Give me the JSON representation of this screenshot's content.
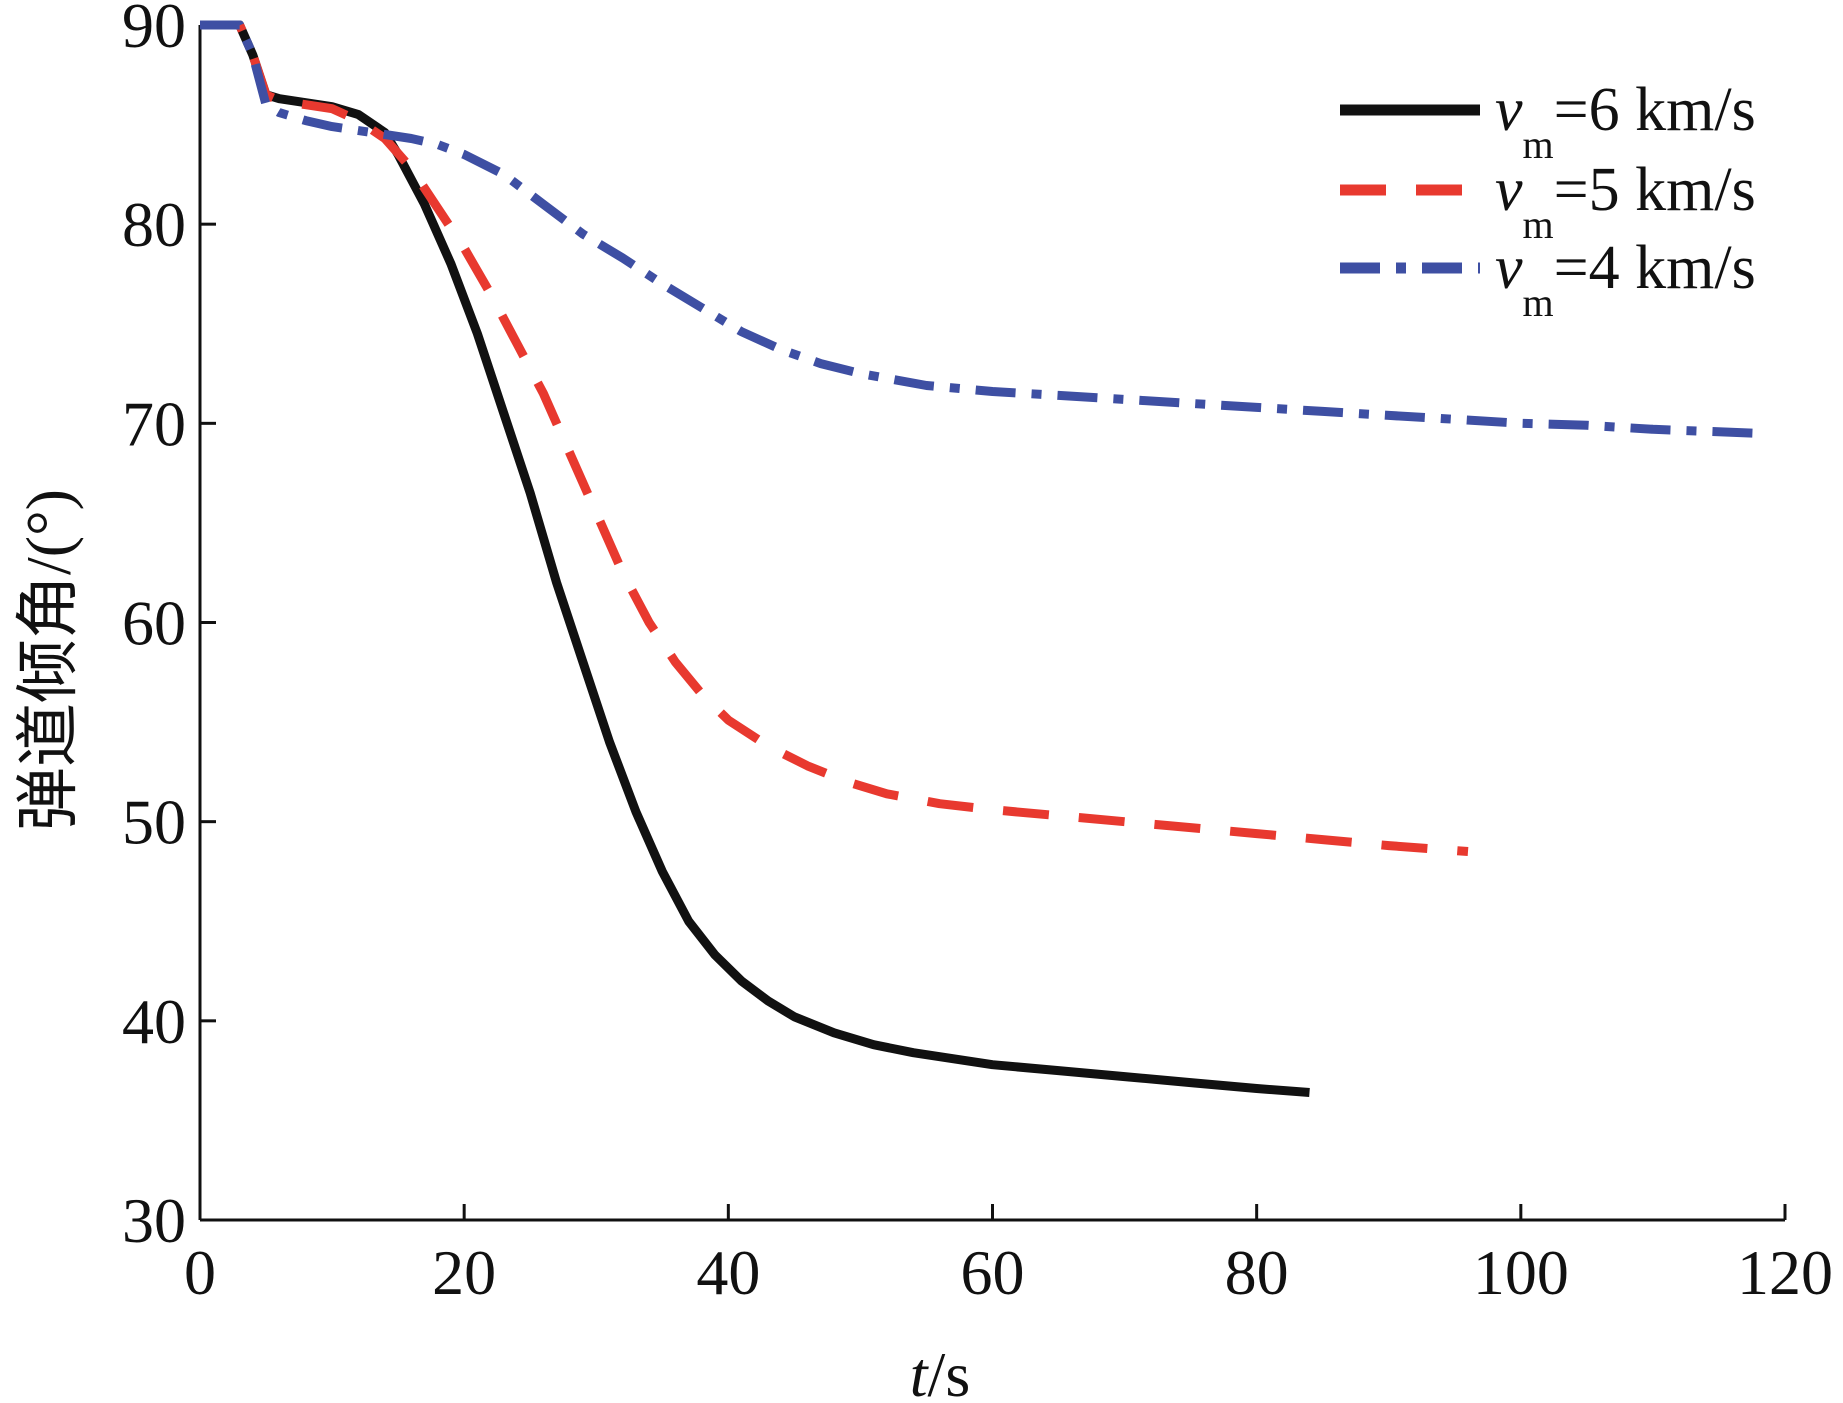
{
  "chart_data": {
    "type": "line",
    "title": "",
    "xlabel": {
      "italic": "t",
      "rest": "/s"
    },
    "ylabel": "弹道倾角/(°)",
    "xlim": [
      0,
      120
    ],
    "ylim": [
      30,
      90
    ],
    "xticks": [
      0,
      20,
      40,
      60,
      80,
      100,
      120
    ],
    "yticks": [
      30,
      40,
      50,
      60,
      70,
      80,
      90
    ],
    "grid": false,
    "legend_position": "top-right",
    "series": [
      {
        "legend_var": "v",
        "legend_sub": "m",
        "legend_value": "=6 km/s",
        "color": "#111111",
        "style": "solid",
        "points": [
          [
            0,
            90
          ],
          [
            3,
            90
          ],
          [
            4,
            88.5
          ],
          [
            5,
            86.5
          ],
          [
            6,
            86.3
          ],
          [
            8,
            86.1
          ],
          [
            10,
            85.9
          ],
          [
            12,
            85.5
          ],
          [
            14,
            84.6
          ],
          [
            15,
            83.5
          ],
          [
            17,
            81
          ],
          [
            19,
            78
          ],
          [
            21,
            74.5
          ],
          [
            23,
            70.5
          ],
          [
            25,
            66.5
          ],
          [
            27,
            62
          ],
          [
            29,
            58
          ],
          [
            31,
            54
          ],
          [
            33,
            50.5
          ],
          [
            35,
            47.5
          ],
          [
            37,
            45
          ],
          [
            39,
            43.3
          ],
          [
            41,
            42
          ],
          [
            43,
            41
          ],
          [
            45,
            40.2
          ],
          [
            48,
            39.4
          ],
          [
            51,
            38.8
          ],
          [
            54,
            38.4
          ],
          [
            57,
            38.1
          ],
          [
            60,
            37.8
          ],
          [
            65,
            37.5
          ],
          [
            70,
            37.2
          ],
          [
            75,
            36.9
          ],
          [
            80,
            36.6
          ],
          [
            84,
            36.4
          ]
        ]
      },
      {
        "legend_var": "v",
        "legend_sub": "m",
        "legend_value": "=5 km/s",
        "color": "#e8392f",
        "style": "dashed",
        "points": [
          [
            0,
            90
          ],
          [
            3,
            90
          ],
          [
            4,
            88.5
          ],
          [
            5,
            86.5
          ],
          [
            6,
            86.2
          ],
          [
            8,
            86
          ],
          [
            10,
            85.8
          ],
          [
            12,
            85.2
          ],
          [
            14,
            84.3
          ],
          [
            16,
            82.8
          ],
          [
            18,
            80.8
          ],
          [
            20,
            78.8
          ],
          [
            22,
            76.5
          ],
          [
            24,
            74
          ],
          [
            26,
            71.5
          ],
          [
            28,
            68.5
          ],
          [
            30,
            65.5
          ],
          [
            32,
            62.5
          ],
          [
            34,
            60
          ],
          [
            36,
            58
          ],
          [
            38,
            56.4
          ],
          [
            40,
            55.1
          ],
          [
            43,
            53.8
          ],
          [
            46,
            52.8
          ],
          [
            49,
            52
          ],
          [
            52,
            51.4
          ],
          [
            56,
            50.9
          ],
          [
            60,
            50.6
          ],
          [
            65,
            50.3
          ],
          [
            70,
            50
          ],
          [
            75,
            49.7
          ],
          [
            80,
            49.4
          ],
          [
            85,
            49.1
          ],
          [
            90,
            48.8
          ],
          [
            96,
            48.5
          ]
        ]
      },
      {
        "legend_var": "v",
        "legend_sub": "m",
        "legend_value": "=4 km/s",
        "color": "#3e4fa3",
        "style": "dashdot",
        "points": [
          [
            0,
            90
          ],
          [
            3,
            90
          ],
          [
            4,
            88.5
          ],
          [
            5,
            86
          ],
          [
            6,
            85.6
          ],
          [
            8,
            85.2
          ],
          [
            10,
            84.9
          ],
          [
            12,
            84.7
          ],
          [
            14,
            84.5
          ],
          [
            16,
            84.3
          ],
          [
            18,
            84
          ],
          [
            20,
            83.5
          ],
          [
            23,
            82.5
          ],
          [
            26,
            81
          ],
          [
            29,
            79.5
          ],
          [
            32,
            78.3
          ],
          [
            35,
            77
          ],
          [
            38,
            75.8
          ],
          [
            41,
            74.6
          ],
          [
            44,
            73.7
          ],
          [
            47,
            73
          ],
          [
            50,
            72.5
          ],
          [
            55,
            71.9
          ],
          [
            60,
            71.6
          ],
          [
            65,
            71.4
          ],
          [
            70,
            71.2
          ],
          [
            75,
            71
          ],
          [
            80,
            70.8
          ],
          [
            85,
            70.6
          ],
          [
            90,
            70.4
          ],
          [
            95,
            70.2
          ],
          [
            100,
            70
          ],
          [
            105,
            69.9
          ],
          [
            110,
            69.7
          ],
          [
            118,
            69.5
          ]
        ]
      }
    ]
  }
}
